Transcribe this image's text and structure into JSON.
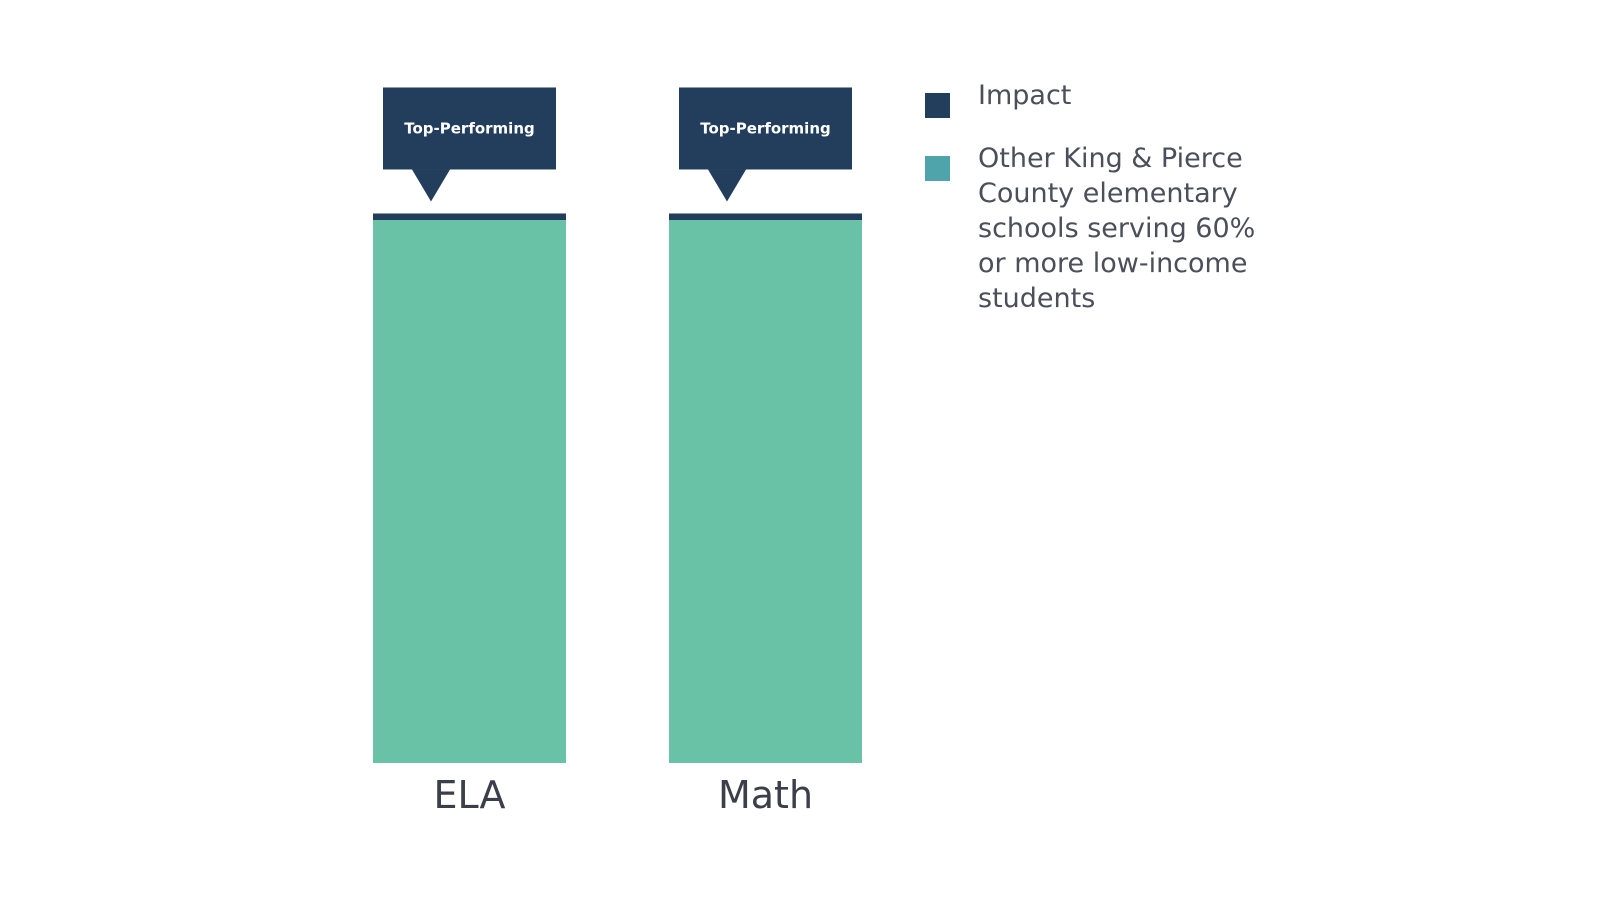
{
  "chart_data": {
    "type": "bar",
    "stacked": true,
    "categories": [
      "ELA",
      "Math"
    ],
    "series": [
      {
        "name": "Other King & Pierce County elementary schools serving 60% or more low-income students",
        "color": "#69c1a6",
        "values": [
          1.0,
          1.0
        ]
      },
      {
        "name": "Impact",
        "color": "#233d5c",
        "values": [
          0.012,
          0.012
        ]
      }
    ],
    "callouts": [
      "Top-Performing",
      "Top-Performing"
    ],
    "callout_color": "#233d5c",
    "legend": {
      "position": "right",
      "items": [
        {
          "label": "Impact",
          "color": "#233d5c"
        },
        {
          "label": "Other King & Pierce County elementary schools serving 60% or more low-income students",
          "color": "#4fa3ab"
        }
      ]
    },
    "grid": false
  }
}
